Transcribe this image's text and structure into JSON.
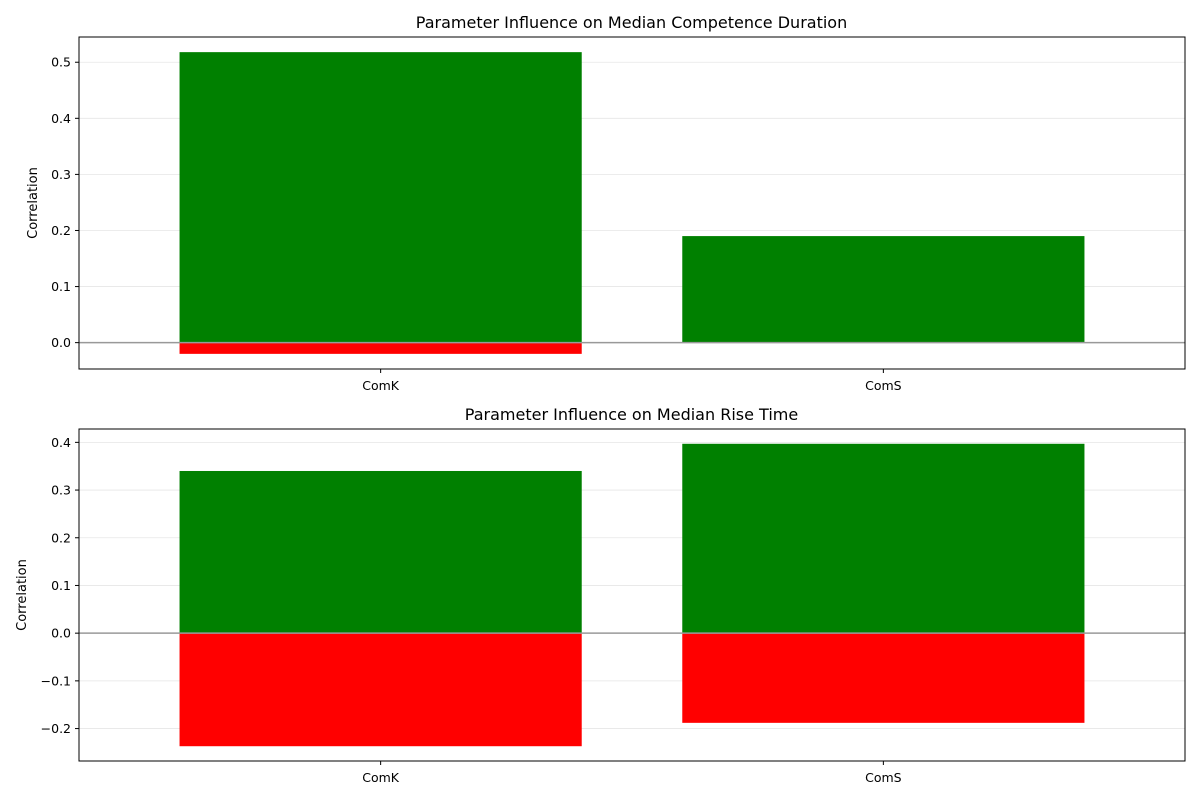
{
  "colors": {
    "positive": "#008000",
    "negative": "#ff0000",
    "zero_line": "#999999",
    "grid": "#e6e6e6"
  },
  "chart_data": [
    {
      "type": "bar",
      "title": "Parameter Influence on Median Competence Duration",
      "xlabel": "",
      "ylabel": "Correlation",
      "categories": [
        "ComK",
        "ComS"
      ],
      "series": [
        {
          "values": [
            0.518,
            0.19
          ]
        },
        {
          "values": [
            -0.02,
            0.0
          ]
        }
      ],
      "ylim": [
        -0.047,
        0.545
      ],
      "yticks": [
        0.0,
        0.1,
        0.2,
        0.3,
        0.4,
        0.5
      ],
      "ytick_labels": [
        "0.0",
        "0.1",
        "0.2",
        "0.3",
        "0.4",
        "0.5"
      ],
      "grid": true,
      "zero_line": true
    },
    {
      "type": "bar",
      "title": "Parameter Influence on Median Rise Time",
      "xlabel": "",
      "ylabel": "Correlation",
      "categories": [
        "ComK",
        "ComS"
      ],
      "series": [
        {
          "values": [
            0.34,
            0.397
          ]
        },
        {
          "values": [
            -0.237,
            -0.188
          ]
        }
      ],
      "ylim": [
        -0.268,
        0.428
      ],
      "yticks": [
        -0.2,
        -0.1,
        0.0,
        0.1,
        0.2,
        0.3,
        0.4
      ],
      "ytick_labels": [
        "−0.2",
        "−0.1",
        "0.0",
        "0.1",
        "0.2",
        "0.3",
        "0.4"
      ],
      "grid": true,
      "zero_line": true
    }
  ]
}
